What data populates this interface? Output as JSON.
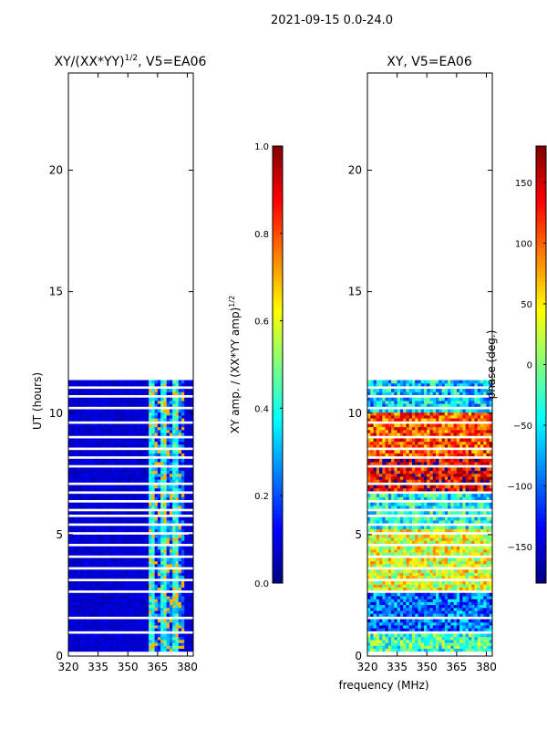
{
  "suptitle": "2021-09-15 0.0-24.0",
  "xlabel_shared": "frequency (MHz)",
  "chart_data": [
    {
      "type": "heatmap",
      "title": "XY/(XX*YY)",
      "title_sup": "1/2",
      "title_suffix": ", V5=EA06",
      "xlabel": "",
      "ylabel": "UT (hours)",
      "xlim": [
        320,
        383
      ],
      "ylim": [
        0,
        24
      ],
      "xticks": [
        320,
        335,
        350,
        365,
        380
      ],
      "yticks": [
        0,
        5,
        10,
        15,
        20
      ],
      "colorbar": {
        "label": "XY amp. / (XX*YY amp)",
        "label_sup": "1/2",
        "range": [
          0.0,
          1.0
        ],
        "ticks": [
          0.0,
          0.2,
          0.4,
          0.6,
          0.8,
          1.0
        ],
        "tick_labels": [
          "0.0",
          "0.2",
          "0.4",
          "0.6",
          "0.8",
          "1.0"
        ]
      },
      "data_time_range_hours": [
        0.2,
        11.3
      ],
      "description_values": {
        "background": 0.05,
        "active_channel_range_mhz": [
          360,
          378
        ],
        "active_channel_values": [
          0.3,
          0.65
        ]
      }
    },
    {
      "type": "heatmap",
      "title": "XY, V5=EA06",
      "xlabel": "frequency (MHz)",
      "ylabel": "",
      "xlim": [
        320,
        383
      ],
      "ylim": [
        0,
        24
      ],
      "xticks": [
        320,
        335,
        350,
        365,
        380
      ],
      "yticks": [
        0,
        5,
        10,
        15,
        20
      ],
      "colorbar": {
        "label": "phase (deg.)",
        "range": [
          -180,
          180
        ],
        "ticks": [
          -150,
          -100,
          -50,
          0,
          50,
          100,
          150
        ],
        "tick_labels": [
          "−150",
          "−100",
          "−50",
          "0",
          "50",
          "100",
          "150"
        ]
      },
      "data_time_range_hours": [
        0.2,
        11.3
      ],
      "phase_bands": [
        {
          "from": 0.2,
          "to": 1.0,
          "phase": -20
        },
        {
          "from": 1.0,
          "to": 2.6,
          "phase": -100
        },
        {
          "from": 2.6,
          "to": 5.2,
          "phase": 35
        },
        {
          "from": 5.2,
          "to": 6.8,
          "phase": -40
        },
        {
          "from": 6.8,
          "to": 8.2,
          "phase": 140
        },
        {
          "from": 8.2,
          "to": 10.0,
          "phase": 110
        },
        {
          "from": 10.0,
          "to": 11.3,
          "phase": -60
        }
      ]
    }
  ]
}
